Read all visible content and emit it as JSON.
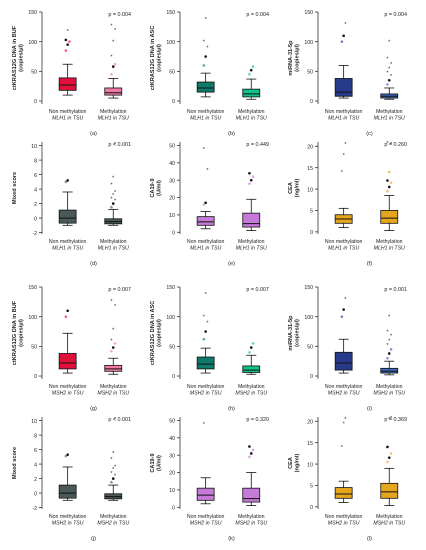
{
  "chart_data": [
    {
      "type": "boxplot",
      "panel_label": "(a)",
      "ylabel": [
        "ctKRAS12G DNA in BUF",
        "(copies/µl)"
      ],
      "yticks": [
        0,
        50,
        100,
        150
      ],
      "ylim": [
        -5,
        150
      ],
      "p_value": "p = 0.004",
      "categories": [
        "Non methylation\nMLH1 in TSU",
        "Methylation\nMLH1 in TSU"
      ],
      "boxes": [
        {
          "name": "Non methylation",
          "color": "#e0103a",
          "whisker_low": 10,
          "q1": 18,
          "median": 27,
          "q3": 39,
          "whisker_high": 62,
          "outliers": [
            85,
            95,
            100,
            103,
            118
          ]
        },
        {
          "name": "Methylation",
          "color": "#f07aa8",
          "whisker_low": 5,
          "q1": 10,
          "median": 14,
          "q3": 22,
          "whisker_high": 38,
          "outliers": [
            45,
            58,
            62,
            75,
            100,
            120,
            127
          ]
        }
      ]
    },
    {
      "type": "boxplot",
      "panel_label": "(b)",
      "ylabel": [
        "ctKRAS12G DNA in ASC",
        "(copies/µl)"
      ],
      "yticks": [
        0,
        50,
        100,
        150
      ],
      "ylim": [
        -5,
        150
      ],
      "p_value": "p = 0.004",
      "categories": [
        "Non methylation\nMLH1 in TSU",
        "Methylation\nMLH1 in TSU"
      ],
      "boxes": [
        {
          "name": "Non methylation",
          "color": "#0e7a6b",
          "whisker_low": 7,
          "q1": 15,
          "median": 22,
          "q3": 32,
          "whisker_high": 47,
          "outliers": [
            60,
            75,
            90,
            100,
            138
          ]
        },
        {
          "name": "Methylation",
          "color": "#10c18a",
          "whisker_low": 3,
          "q1": 7,
          "median": 12,
          "q3": 20,
          "whisker_high": 37,
          "outliers": [
            45,
            52,
            58
          ]
        }
      ]
    },
    {
      "type": "boxplot",
      "panel_label": "(c)",
      "ylabel": [
        "miRNA-31-5p",
        "(copies/µl)"
      ],
      "yticks": [
        0,
        50,
        100,
        150
      ],
      "ylim": [
        -5,
        150
      ],
      "p_value": "p = 0.004",
      "categories": [
        "Non methylation\nMLH1 in TSU",
        "Methylation\nMLH1 in TSU"
      ],
      "boxes": [
        {
          "name": "Non methylation",
          "color": "#283a8a",
          "whisker_low": 5,
          "q1": 8,
          "median": 15,
          "q3": 38,
          "whisker_high": 60,
          "outliers": [
            100,
            110,
            130
          ]
        },
        {
          "name": "Methylation",
          "color": "#3b66b8",
          "whisker_low": 3,
          "q1": 5,
          "median": 8,
          "q3": 12,
          "whisker_high": 22,
          "outliers": [
            28,
            35,
            42,
            48,
            55,
            62,
            72,
            100
          ]
        }
      ]
    },
    {
      "type": "boxplot",
      "panel_label": "(d)",
      "ylabel": [
        "Mixed score"
      ],
      "yticks": [
        -2,
        0,
        2,
        4,
        6,
        8,
        10
      ],
      "ylim": [
        -2.2,
        10.5
      ],
      "p_value": "p < 0.001",
      "categories": [
        "Non methylation\nMLH1 in TSU",
        "Methylation\nMLH1 in TSU"
      ],
      "boxes": [
        {
          "name": "Non methylation",
          "color": "#4a5a58",
          "whisker_low": -1,
          "q1": -0.7,
          "median": 0,
          "q3": 1.1,
          "whisker_high": 3.6,
          "outliers": [
            5,
            5.2
          ]
        },
        {
          "name": "Methylation",
          "color": "#4a5a58",
          "whisker_low": -1,
          "q1": -0.8,
          "median": -0.5,
          "q3": -0.1,
          "whisker_high": 1.2,
          "outliers": [
            1.5,
            2,
            2.4,
            2.7,
            3.2,
            3.6,
            4.6,
            5.6,
            10.2
          ]
        }
      ]
    },
    {
      "type": "boxplot",
      "panel_label": "(e)",
      "ylabel": [
        "CA19-9",
        "(U/ml)"
      ],
      "yticks": [
        0,
        10,
        20,
        30,
        40,
        50
      ],
      "ylim": [
        -1,
        52
      ],
      "p_value": "p = 0.449",
      "categories": [
        "Non methylation\nMLH1 in TSU",
        "Methylation\nMLH1 in TSU"
      ],
      "boxes": [
        {
          "name": "Non methylation",
          "color": "#c47ad6",
          "whisker_low": 2,
          "q1": 4,
          "median": 6,
          "q3": 9,
          "whisker_high": 12,
          "outliers": [
            16,
            17,
            36,
            48
          ]
        },
        {
          "name": "Methylation",
          "color": "#c47ad6",
          "whisker_low": 1,
          "q1": 3,
          "median": 5,
          "q3": 11,
          "whisker_high": 19,
          "outliers": [
            28,
            30,
            32,
            34
          ]
        }
      ]
    },
    {
      "type": "boxplot",
      "panel_label": "(f)",
      "ylabel": [
        "CEA",
        "(ng/ml)"
      ],
      "yticks": [
        0,
        5,
        10,
        15,
        20
      ],
      "ylim": [
        -0.5,
        21
      ],
      "p_value": "p = 0.260",
      "categories": [
        "Non methylation\nMLH1 in TSU",
        "Methylation\nMLH1 in TSU"
      ],
      "boxes": [
        {
          "name": "Non methylation",
          "color": "#e5a51c",
          "whisker_low": 1,
          "q1": 2,
          "median": 3,
          "q3": 4,
          "whisker_high": 5.5,
          "outliers": [
            14,
            18,
            20.5
          ]
        },
        {
          "name": "Methylation",
          "color": "#e5a51c",
          "whisker_low": 0.3,
          "q1": 2,
          "median": 3.2,
          "q3": 5,
          "whisker_high": 8.5,
          "outliers": [
            9.5,
            10.5,
            11.5,
            12,
            14,
            20.5,
            20.8
          ]
        }
      ]
    },
    {
      "type": "boxplot",
      "panel_label": "(g)",
      "ylabel": [
        "ctKRAS12G DNA in BUF",
        "(copies/µl)"
      ],
      "yticks": [
        0,
        50,
        100,
        150
      ],
      "ylim": [
        -5,
        150
      ],
      "p_value": "p = 0.007",
      "categories": [
        "Non methylation\nMSH2 in TSU",
        "Methylation\nMSH2 in TSU"
      ],
      "boxes": [
        {
          "name": "Non methylation",
          "color": "#e0103a",
          "whisker_low": 5,
          "q1": 12,
          "median": 22,
          "q3": 38,
          "whisker_high": 72,
          "outliers": [
            100,
            110
          ]
        },
        {
          "name": "Methylation",
          "color": "#f07aa8",
          "whisker_low": 3,
          "q1": 8,
          "median": 12,
          "q3": 18,
          "whisker_high": 30,
          "outliers": [
            42,
            48,
            55,
            60,
            78,
            118,
            126
          ]
        }
      ]
    },
    {
      "type": "boxplot",
      "panel_label": "(h)",
      "ylabel": [
        "ctKRAS12G DNA in ASC",
        "(copies/µl)"
      ],
      "yticks": [
        0,
        50,
        100,
        150
      ],
      "ylim": [
        -5,
        150
      ],
      "p_value": "p = 0.007",
      "categories": [
        "Non methylation\nMSH2 in TSU",
        "Methylation\nMSH2 in TSU"
      ],
      "boxes": [
        {
          "name": "Non methylation",
          "color": "#0e7a6b",
          "whisker_low": 5,
          "q1": 12,
          "median": 20,
          "q3": 32,
          "whisker_high": 47,
          "outliers": [
            62,
            75,
            90,
            100,
            138
          ]
        },
        {
          "name": "Methylation",
          "color": "#10c18a",
          "whisker_low": 3,
          "q1": 6,
          "median": 10,
          "q3": 17,
          "whisker_high": 35,
          "outliers": [
            40,
            48,
            55
          ]
        }
      ]
    },
    {
      "type": "boxplot",
      "panel_label": "(i)",
      "ylabel": [
        "miRNA-31-5p",
        "(copies/µl)"
      ],
      "yticks": [
        0,
        50,
        100,
        150
      ],
      "ylim": [
        -5,
        150
      ],
      "p_value": "p = 0.001",
      "categories": [
        "Non methylation\nMSH2 in TSU",
        "Methylation\nMSH2 in TSU"
      ],
      "boxes": [
        {
          "name": "Non methylation",
          "color": "#283a8a",
          "whisker_low": 5,
          "q1": 10,
          "median": 22,
          "q3": 40,
          "whisker_high": 62,
          "outliers": [
            100,
            112,
            130
          ]
        },
        {
          "name": "Methylation",
          "color": "#3b66b8",
          "whisker_low": 2,
          "q1": 5,
          "median": 8,
          "q3": 13,
          "whisker_high": 25,
          "outliers": [
            30,
            38,
            45,
            52,
            60,
            68,
            75,
            100
          ]
        }
      ]
    },
    {
      "type": "boxplot",
      "panel_label": "(j)",
      "ylabel": [
        "Mixed score"
      ],
      "yticks": [
        -2,
        0,
        2,
        4,
        6,
        8,
        10
      ],
      "ylim": [
        -2.2,
        10.5
      ],
      "p_value": "p < 0.001",
      "categories": [
        "Non methylation\nMSH2 in TSU",
        "Methylation\nMSH2 in TSU"
      ],
      "boxes": [
        {
          "name": "Non methylation",
          "color": "#4a5a58",
          "whisker_low": -1,
          "q1": -0.7,
          "median": 0,
          "q3": 1.1,
          "whisker_high": 3.6,
          "outliers": [
            5.1,
            5.3
          ]
        },
        {
          "name": "Methylation",
          "color": "#4a5a58",
          "whisker_low": -1,
          "q1": -0.8,
          "median": -0.5,
          "q3": -0.1,
          "whisker_high": 1.1,
          "outliers": [
            1.5,
            2,
            2.4,
            2.8,
            3.3,
            3.7,
            4.7,
            5.5,
            10.2
          ]
        }
      ]
    },
    {
      "type": "boxplot",
      "panel_label": "(k)",
      "ylabel": [
        "CA19-9",
        "(U/ml)"
      ],
      "yticks": [
        0,
        10,
        20,
        30,
        40,
        50
      ],
      "ylim": [
        -1,
        52
      ],
      "p_value": "p = 0.320",
      "categories": [
        "Non methylation\nMSH2 in TSU",
        "Methylation\nMSH2 in TSU"
      ],
      "boxes": [
        {
          "name": "Non methylation",
          "color": "#c47ad6",
          "whisker_low": 2,
          "q1": 4,
          "median": 7,
          "q3": 11,
          "whisker_high": 17,
          "outliers": [
            48
          ]
        },
        {
          "name": "Methylation",
          "color": "#c47ad6",
          "whisker_low": 1,
          "q1": 3,
          "median": 5,
          "q3": 11,
          "whisker_high": 20,
          "outliers": [
            29,
            31,
            33,
            35
          ]
        }
      ]
    },
    {
      "type": "boxplot",
      "panel_label": "(l)",
      "ylabel": [
        "CEA",
        "(ng/ml)"
      ],
      "yticks": [
        0,
        5,
        10,
        15,
        20
      ],
      "ylim": [
        -0.5,
        21
      ],
      "p_value": "p = 0.369",
      "categories": [
        "Non methylation\nMSH2 in TSU",
        "Methylation\nMSH2 in TSU"
      ],
      "boxes": [
        {
          "name": "Non methylation",
          "color": "#e5a51c",
          "whisker_low": 1,
          "q1": 2,
          "median": 3,
          "q3": 4.5,
          "whisker_high": 6,
          "outliers": [
            14,
            19.5,
            20.5
          ]
        },
        {
          "name": "Methylation",
          "color": "#e5a51c",
          "whisker_low": 0.3,
          "q1": 2,
          "median": 3.5,
          "q3": 5.5,
          "whisker_high": 9,
          "outliers": [
            10.5,
            11.5,
            12.5,
            14,
            20.5,
            20.8
          ]
        }
      ]
    }
  ]
}
